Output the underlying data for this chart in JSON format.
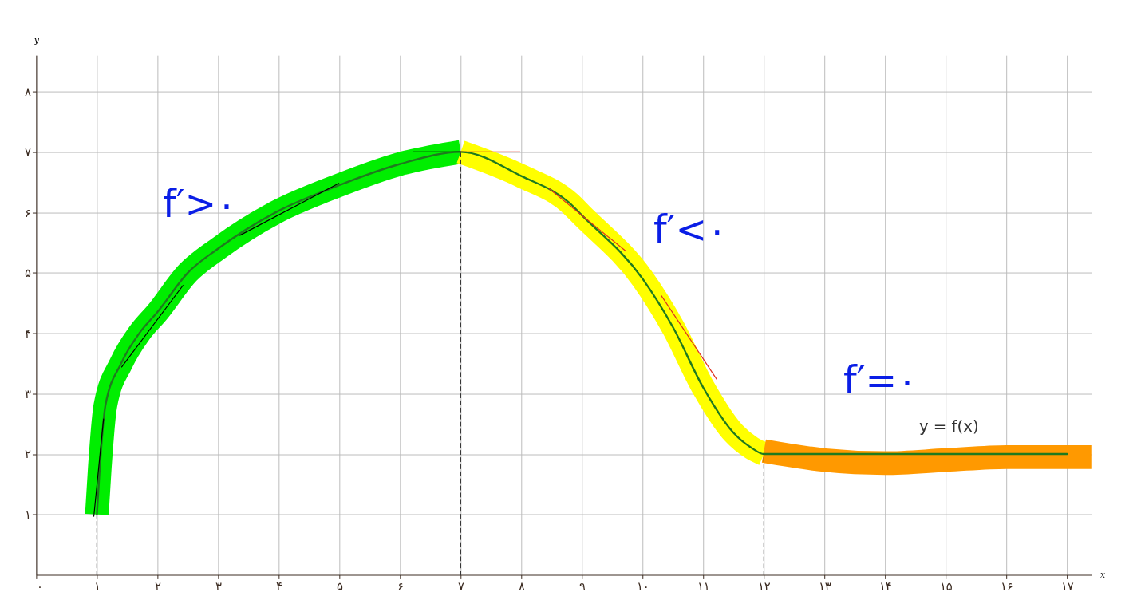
{
  "chart_data": {
    "type": "line",
    "xlabel": "x",
    "ylabel": "y",
    "xlim": [
      0,
      17.4
    ],
    "ylim": [
      0,
      8.6
    ],
    "xticks": [
      {
        "value": 0,
        "label": "۰"
      },
      {
        "value": 1,
        "label": "۱"
      },
      {
        "value": 2,
        "label": "۲"
      },
      {
        "value": 3,
        "label": "۳"
      },
      {
        "value": 4,
        "label": "۴"
      },
      {
        "value": 5,
        "label": "۵"
      },
      {
        "value": 6,
        "label": "۶"
      },
      {
        "value": 7,
        "label": "۷"
      },
      {
        "value": 8,
        "label": "۸"
      },
      {
        "value": 9,
        "label": "۹"
      },
      {
        "value": 10,
        "label": "۱۰"
      },
      {
        "value": 11,
        "label": "۱۱"
      },
      {
        "value": 12,
        "label": "۱۲"
      },
      {
        "value": 13,
        "label": "۱۳"
      },
      {
        "value": 14,
        "label": "۱۴"
      },
      {
        "value": 15,
        "label": "۱۵"
      },
      {
        "value": 16,
        "label": "۱۶"
      },
      {
        "value": 17,
        "label": "۱۷"
      }
    ],
    "yticks": [
      {
        "value": 1,
        "label": "۱"
      },
      {
        "value": 2,
        "label": "۲"
      },
      {
        "value": 3,
        "label": "۳"
      },
      {
        "value": 4,
        "label": "۴"
      },
      {
        "value": 5,
        "label": "۵"
      },
      {
        "value": 6,
        "label": "۶"
      },
      {
        "value": 7,
        "label": "۷"
      },
      {
        "value": 8,
        "label": "۸"
      }
    ],
    "grid": true,
    "marker": "none",
    "line_style": "solid",
    "series": [
      {
        "color": "#00ee00",
        "x": [
          1,
          1.05,
          1.14,
          1.4,
          1.7,
          2,
          2.5,
          3,
          3.95,
          5,
          6,
          7
        ],
        "values": [
          1,
          1.8,
          2.8,
          3.5,
          4,
          4.35,
          5,
          5.4,
          6,
          6.45,
          6.8,
          7
        ]
      },
      {
        "color": "#ffff00",
        "x": [
          7,
          8,
          8.8,
          9,
          10,
          10.5,
          11,
          11.5,
          11.8,
          12
        ],
        "values": [
          7,
          6.6,
          6.15,
          5.95,
          4.9,
          4.1,
          3.1,
          2.35,
          2.1,
          2
        ]
      },
      {
        "color": "#ff9900",
        "x": [
          12,
          13,
          14,
          15,
          16,
          17,
          17.4
        ],
        "values": [
          2.05,
          1.9,
          1.85,
          1.9,
          1.95,
          1.95,
          1.95
        ]
      },
      {
        "color": "#1f7a1f",
        "x": [
          1,
          1.05,
          1.14,
          1.4,
          1.7,
          2,
          2.5,
          3,
          3.95,
          5,
          6,
          7,
          8,
          8.8,
          9,
          10,
          10.5,
          11,
          11.5,
          11.8,
          12,
          17
        ],
        "values": [
          1,
          1.8,
          2.8,
          3.5,
          4,
          4.35,
          5,
          5.4,
          6,
          6.45,
          6.8,
          7,
          6.6,
          6.15,
          5.95,
          4.9,
          4.1,
          3.1,
          2.35,
          2.1,
          2,
          2
        ]
      },
      {
        "color": "#000000",
        "x": [
          0.95,
          1.11
        ],
        "values": [
          0.97,
          2.58
        ]
      },
      {
        "color": "#000000",
        "x": [
          1.41,
          2.42
        ],
        "values": [
          3.44,
          4.79
        ]
      },
      {
        "color": "#000000",
        "x": [
          3.36,
          4.99
        ],
        "values": [
          5.62,
          6.48
        ]
      },
      {
        "color": "#000000",
        "x": [
          6.22,
          7
        ],
        "values": [
          7,
          7
        ]
      },
      {
        "color": "#e03020",
        "x": [
          7,
          7.98
        ],
        "values": [
          7,
          7
        ]
      },
      {
        "color": "#e03020",
        "x": [
          8.46,
          9.72
        ],
        "values": [
          6.39,
          5.36
        ]
      },
      {
        "color": "#e03020",
        "x": [
          10.31,
          11.22
        ],
        "values": [
          4.62,
          3.24
        ]
      },
      {
        "color": "#333333",
        "line_style": "dashed",
        "x": [
          1,
          1
        ],
        "values": [
          0,
          1
        ]
      },
      {
        "color": "#333333",
        "line_style": "dashed",
        "x": [
          7,
          7
        ],
        "values": [
          0,
          7
        ]
      },
      {
        "color": "#333333",
        "line_style": "dashed",
        "x": [
          12,
          12
        ],
        "values": [
          0,
          2
        ]
      }
    ],
    "annotations": [
      "f′>۰",
      "f′<۰",
      "f′=۰",
      "y = f(x)"
    ]
  }
}
